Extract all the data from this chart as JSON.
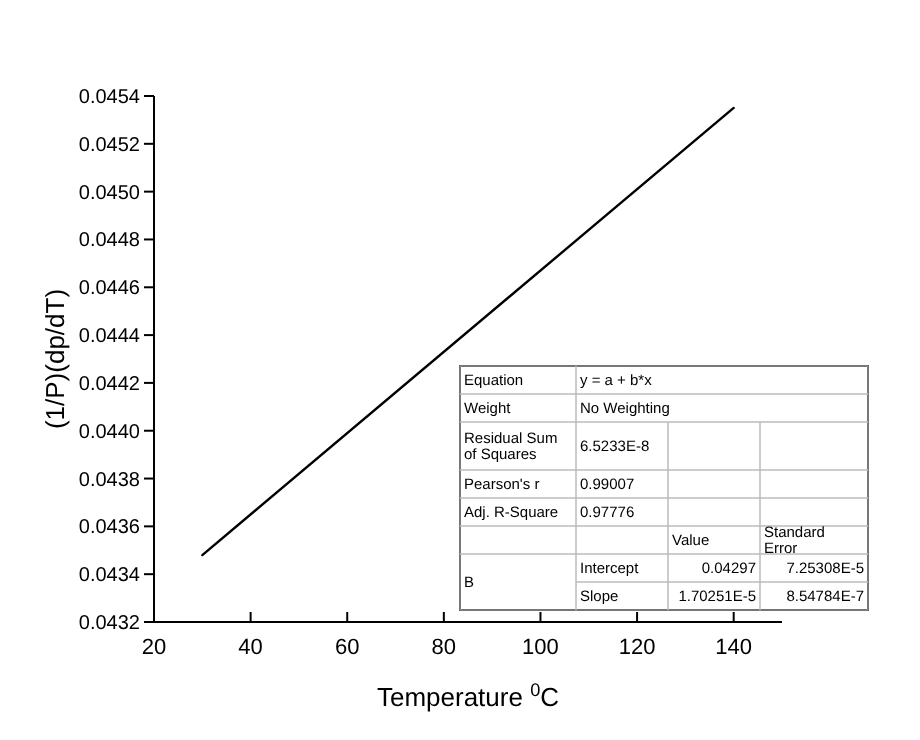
{
  "chart_data": {
    "type": "line",
    "xlabel": "Temperature $^{0}$C",
    "ylabel": "(1/P)(dp/dT)",
    "x": [
      30,
      140
    ],
    "series": [
      {
        "color": "#000000",
        "values": [
          0.04348,
          0.04535
        ]
      }
    ],
    "xlim": [
      20,
      150
    ],
    "xticks": [
      20,
      40,
      60,
      80,
      100,
      120,
      140
    ],
    "ylim": [
      0.0432,
      0.0454
    ],
    "yticks": [
      0.0432,
      0.0434,
      0.0436,
      0.0438,
      {
        "value": 0.044,
        "label": "0.0440"
      },
      0.0442,
      0.0444,
      0.0446,
      0.0448,
      {
        "value": 0.045,
        "label": "0.0450"
      },
      0.0452,
      0.0454
    ],
    "grid": false,
    "marker": "none",
    "line_style": "solid",
    "annotations": [
      "Equation",
      "y = a + b*x",
      "Weight",
      "No Weighting",
      "Residual Sum of Squares",
      "6.5233E-8",
      "Pearson's r",
      "0.99007",
      "Adj. R-Square",
      "0.97776",
      "Value",
      "Standard Error",
      "B",
      "Intercept",
      "0.04297",
      "7.25308E-5",
      "Slope",
      "1.70251E-5",
      "8.54784E-7"
    ]
  }
}
